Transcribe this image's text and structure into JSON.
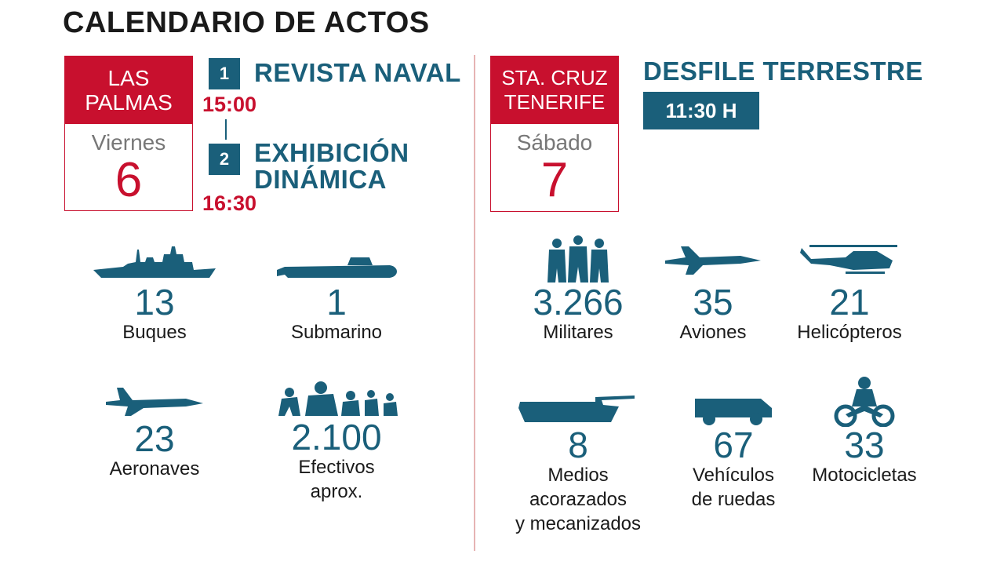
{
  "title": "CALENDARIO DE ACTOS",
  "left": {
    "calendar": {
      "place_line1": "LAS",
      "place_line2": "PALMAS",
      "day_name": "Viernes",
      "day_number": "6"
    },
    "events": [
      {
        "number": "1",
        "title": "REVISTA NAVAL",
        "time": "15:00"
      },
      {
        "number": "2",
        "title_line1": "EXHIBICIÓN",
        "title_line2": "DINÁMICA",
        "time": "16:30"
      }
    ],
    "stats": [
      {
        "icon": "ship-icon",
        "value": "13",
        "label": "Buques"
      },
      {
        "icon": "submarine-icon",
        "value": "1",
        "label": "Submarino"
      },
      {
        "icon": "aircraft-icon",
        "value": "23",
        "label": "Aeronaves"
      },
      {
        "icon": "troops-icon",
        "value": "2.100",
        "label_line1": "Efectivos",
        "label_line2": "aprox."
      }
    ]
  },
  "right": {
    "calendar": {
      "place_line1": "STA. CRUZ",
      "place_line2": "TENERIFE",
      "day_name": "Sábado",
      "day_number": "7"
    },
    "event": {
      "title": "DESFILE TERRESTRE",
      "time": "11:30 H"
    },
    "stats": [
      {
        "icon": "soldiers-icon",
        "value": "3.266",
        "label": "Militares"
      },
      {
        "icon": "jet-icon",
        "value": "35",
        "label": "Aviones"
      },
      {
        "icon": "helicopter-icon",
        "value": "21",
        "label": "Helicópteros"
      },
      {
        "icon": "tank-icon",
        "value": "8",
        "label_line1": "Medios",
        "label_line2": "acorazados",
        "label_line3": "y mecanizados"
      },
      {
        "icon": "vehicle-icon",
        "value": "67",
        "label_line1": "Vehículos",
        "label_line2": "de ruedas"
      },
      {
        "icon": "motorcycle-icon",
        "value": "33",
        "label": "Motocicletas"
      }
    ]
  },
  "colors": {
    "red": "#c8102e",
    "blue": "#1a5f7a",
    "text": "#1a1a1a",
    "muted": "#777777"
  }
}
